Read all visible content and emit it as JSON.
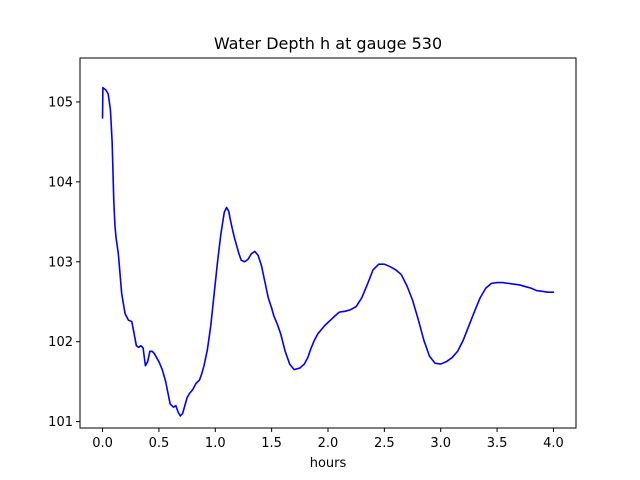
{
  "chart_data": {
    "type": "line",
    "title": "Water Depth h at gauge 530",
    "xlabel": "hours",
    "ylabel": "",
    "xlim": [
      -0.2,
      4.2
    ],
    "ylim": [
      100.92,
      105.55
    ],
    "xticks": [
      0.0,
      0.5,
      1.0,
      1.5,
      2.0,
      2.5,
      3.0,
      3.5,
      4.0
    ],
    "xtick_labels": [
      "0.0",
      "0.5",
      "1.0",
      "1.5",
      "2.0",
      "2.5",
      "3.0",
      "3.5",
      "4.0"
    ],
    "yticks": [
      101,
      102,
      103,
      104,
      105
    ],
    "ytick_labels": [
      "101",
      "102",
      "103",
      "104",
      "105"
    ],
    "grid": false,
    "line_color": "#0000ff",
    "series": [
      {
        "x": [
          0.0,
          0.003,
          0.01,
          0.03,
          0.05,
          0.07,
          0.085,
          0.1,
          0.11,
          0.12,
          0.14,
          0.17,
          0.2,
          0.23,
          0.26,
          0.28,
          0.3,
          0.32,
          0.34,
          0.36,
          0.38,
          0.4,
          0.42,
          0.44,
          0.46,
          0.48,
          0.5,
          0.53,
          0.56,
          0.6,
          0.63,
          0.65,
          0.67,
          0.69,
          0.71,
          0.73,
          0.75,
          0.77,
          0.8,
          0.83,
          0.86,
          0.88,
          0.9,
          0.93,
          0.96,
          0.99,
          1.02,
          1.05,
          1.08,
          1.1,
          1.12,
          1.13,
          1.15,
          1.17,
          1.19,
          1.21,
          1.23,
          1.26,
          1.29,
          1.32,
          1.35,
          1.38,
          1.41,
          1.44,
          1.47,
          1.5,
          1.52,
          1.55,
          1.58,
          1.62,
          1.66,
          1.7,
          1.75,
          1.79,
          1.82,
          1.85,
          1.88,
          1.91,
          1.94,
          1.97,
          2.0,
          2.03,
          2.06,
          2.1,
          2.15,
          2.2,
          2.25,
          2.3,
          2.35,
          2.4,
          2.45,
          2.5,
          2.55,
          2.6,
          2.65,
          2.7,
          2.75,
          2.8,
          2.85,
          2.9,
          2.95,
          3.0,
          3.05,
          3.1,
          3.15,
          3.2,
          3.25,
          3.3,
          3.35,
          3.4,
          3.45,
          3.5,
          3.55,
          3.6,
          3.65,
          3.7,
          3.75,
          3.8,
          3.85,
          3.9,
          3.95,
          4.0
        ],
        "y": [
          104.8,
          105.18,
          105.17,
          105.15,
          105.1,
          104.9,
          104.5,
          103.75,
          103.45,
          103.3,
          103.1,
          102.6,
          102.35,
          102.27,
          102.25,
          102.1,
          101.95,
          101.93,
          101.95,
          101.92,
          101.7,
          101.75,
          101.88,
          101.88,
          101.85,
          101.8,
          101.75,
          101.65,
          101.5,
          101.22,
          101.18,
          101.2,
          101.12,
          101.07,
          101.1,
          101.2,
          101.3,
          101.35,
          101.4,
          101.48,
          101.52,
          101.6,
          101.7,
          101.9,
          102.2,
          102.6,
          103.0,
          103.35,
          103.62,
          103.68,
          103.63,
          103.55,
          103.42,
          103.3,
          103.2,
          103.1,
          103.02,
          103.0,
          103.03,
          103.1,
          103.13,
          103.08,
          102.95,
          102.75,
          102.55,
          102.42,
          102.32,
          102.22,
          102.1,
          101.88,
          101.72,
          101.65,
          101.67,
          101.72,
          101.8,
          101.92,
          102.02,
          102.1,
          102.15,
          102.2,
          102.24,
          102.28,
          102.32,
          102.37,
          102.38,
          102.4,
          102.44,
          102.55,
          102.72,
          102.9,
          102.97,
          102.97,
          102.94,
          102.9,
          102.84,
          102.7,
          102.52,
          102.28,
          102.02,
          101.82,
          101.73,
          101.72,
          101.75,
          101.8,
          101.88,
          102.02,
          102.2,
          102.38,
          102.55,
          102.67,
          102.73,
          102.74,
          102.74,
          102.73,
          102.72,
          102.71,
          102.69,
          102.67,
          102.64,
          102.63,
          102.62,
          102.62
        ]
      }
    ]
  }
}
